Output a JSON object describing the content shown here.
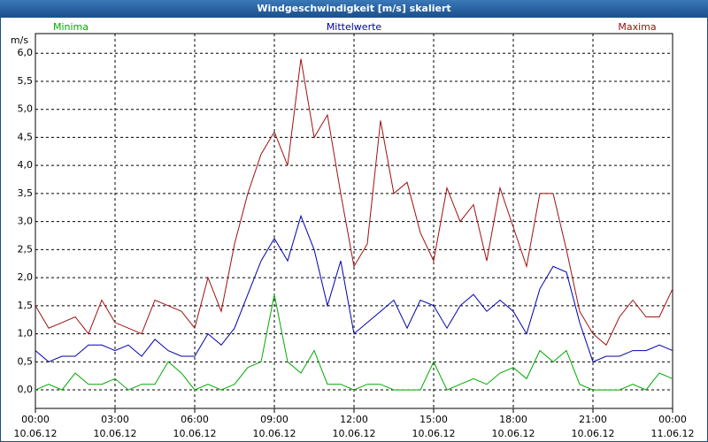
{
  "chart_data": {
    "type": "line",
    "title": "Windgeschwindigkeit [m/s] skaliert",
    "y_label": "m/s",
    "grid": true,
    "legend": "top",
    "x": [
      0,
      0.5,
      1,
      1.5,
      2,
      2.5,
      3,
      3.5,
      4,
      4.5,
      5,
      5.5,
      6,
      6.5,
      7,
      7.5,
      8,
      8.5,
      9,
      9.5,
      10,
      10.5,
      11,
      11.5,
      12,
      12.5,
      13,
      13.5,
      14,
      14.5,
      15,
      15.5,
      16,
      16.5,
      17,
      17.5,
      18,
      18.5,
      19,
      19.5,
      20,
      20.5,
      21,
      21.5,
      22,
      22.5,
      23,
      23.5,
      24
    ],
    "xlim": [
      0,
      24
    ],
    "xticks": [
      {
        "value": 0,
        "label": "00:00",
        "date": "10.06.12"
      },
      {
        "value": 3,
        "label": "03:00",
        "date": "10.06.12"
      },
      {
        "value": 6,
        "label": "06:00",
        "date": "10.06.12"
      },
      {
        "value": 9,
        "label": "09:00",
        "date": "10.06.12"
      },
      {
        "value": 12,
        "label": "12:00",
        "date": "10.06.12"
      },
      {
        "value": 15,
        "label": "15:00",
        "date": "10.06.12"
      },
      {
        "value": 18,
        "label": "18:00",
        "date": "10.06.12"
      },
      {
        "value": 21,
        "label": "21:00",
        "date": "10.06.12"
      },
      {
        "value": 24,
        "label": "00:00",
        "date": "11.06.12"
      }
    ],
    "ylim": [
      -0.33,
      6.35
    ],
    "yticks": [
      {
        "value": 0,
        "label": "0,0"
      },
      {
        "value": 0.5,
        "label": "0,5"
      },
      {
        "value": 1,
        "label": "1,0"
      },
      {
        "value": 1.5,
        "label": "1,5"
      },
      {
        "value": 2,
        "label": "2,0"
      },
      {
        "value": 2.5,
        "label": "2,5"
      },
      {
        "value": 3,
        "label": "3,0"
      },
      {
        "value": 3.5,
        "label": "3,5"
      },
      {
        "value": 4,
        "label": "4,0"
      },
      {
        "value": 4.5,
        "label": "4,5"
      },
      {
        "value": 5,
        "label": "5,0"
      },
      {
        "value": 5.5,
        "label": "5,5"
      },
      {
        "value": 6,
        "label": "6,0"
      }
    ],
    "series": [
      {
        "name": "Minima",
        "color": "#00aa00",
        "values": [
          0.0,
          0.1,
          0.0,
          0.3,
          0.1,
          0.1,
          0.2,
          0.0,
          0.1,
          0.1,
          0.5,
          0.3,
          0.0,
          0.1,
          0.0,
          0.1,
          0.4,
          0.5,
          1.7,
          0.5,
          0.3,
          0.7,
          0.1,
          0.1,
          0.0,
          0.1,
          0.1,
          0.0,
          0.0,
          0.0,
          0.5,
          0.0,
          0.1,
          0.2,
          0.1,
          0.3,
          0.4,
          0.2,
          0.7,
          0.5,
          0.7,
          0.1,
          0.0,
          0.0,
          0.0,
          0.1,
          0.0,
          0.3,
          0.2
        ]
      },
      {
        "name": "Mittelwerte",
        "color": "#0000b0",
        "values": [
          0.7,
          0.5,
          0.6,
          0.6,
          0.8,
          0.8,
          0.7,
          0.8,
          0.6,
          0.9,
          0.7,
          0.6,
          0.6,
          1.0,
          0.8,
          1.1,
          1.7,
          2.3,
          2.7,
          2.3,
          3.1,
          2.5,
          1.5,
          2.3,
          1.0,
          1.2,
          1.4,
          1.6,
          1.1,
          1.6,
          1.5,
          1.1,
          1.5,
          1.7,
          1.4,
          1.6,
          1.4,
          1.0,
          1.8,
          2.2,
          2.1,
          1.2,
          0.5,
          0.6,
          0.6,
          0.7,
          0.7,
          0.8,
          0.7
        ]
      },
      {
        "name": "Maxima",
        "color": "#a01010",
        "values": [
          1.5,
          1.1,
          1.2,
          1.3,
          1.0,
          1.6,
          1.2,
          1.1,
          1.0,
          1.6,
          1.5,
          1.4,
          1.1,
          2.0,
          1.4,
          2.6,
          3.5,
          4.2,
          4.6,
          4.0,
          5.9,
          4.5,
          4.9,
          3.5,
          2.2,
          2.6,
          4.8,
          3.5,
          3.7,
          2.8,
          2.3,
          3.6,
          3.0,
          3.3,
          2.3,
          3.6,
          2.9,
          2.2,
          3.5,
          3.5,
          2.5,
          1.4,
          1.0,
          0.8,
          1.3,
          1.6,
          1.3,
          1.3,
          1.8
        ]
      }
    ]
  }
}
